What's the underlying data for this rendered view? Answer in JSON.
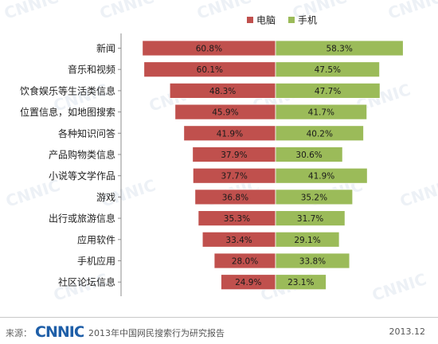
{
  "chart_data": {
    "type": "bar",
    "orientation": "horizontal-butterfly",
    "categories": [
      "新闻",
      "音乐和视频",
      "饮食娱乐等生活类信息",
      "位置信息，如地图搜索",
      "各种知识问答",
      "产品购物类信息",
      "小说等文学作品",
      "游戏",
      "出行或旅游信息",
      "应用软件",
      "手机应用",
      "社区论坛信息"
    ],
    "series": [
      {
        "name": "电脑",
        "color": "#c0504d",
        "values": [
          60.8,
          60.1,
          48.3,
          45.9,
          41.9,
          37.9,
          37.7,
          36.8,
          35.3,
          33.4,
          28.0,
          24.9
        ],
        "labels": [
          "60.8%",
          "60.1%",
          "48.3%",
          "45.9%",
          "41.9%",
          "37.9%",
          "37.7%",
          "36.8%",
          "35.3%",
          "33.4%",
          "28.0%",
          "24.9%"
        ]
      },
      {
        "name": "手机",
        "color": "#9bbb59",
        "values": [
          58.3,
          47.5,
          47.7,
          41.7,
          40.2,
          30.6,
          41.9,
          35.2,
          31.7,
          29.1,
          33.8,
          23.1
        ],
        "labels": [
          "58.3%",
          "47.5%",
          "47.7%",
          "41.7%",
          "40.2%",
          "30.6%",
          "41.9%",
          "35.2%",
          "31.7%",
          "29.1%",
          "33.8%",
          "23.1%"
        ]
      }
    ],
    "unit": "%",
    "legend_position": "top-right",
    "grid": false
  },
  "footer": {
    "source_label": "来源：",
    "logo_text": "CNNIC",
    "report_title": "2013年中国网民搜索行为研究报告",
    "date": "2013.12"
  },
  "watermark_text": "CNNIC"
}
